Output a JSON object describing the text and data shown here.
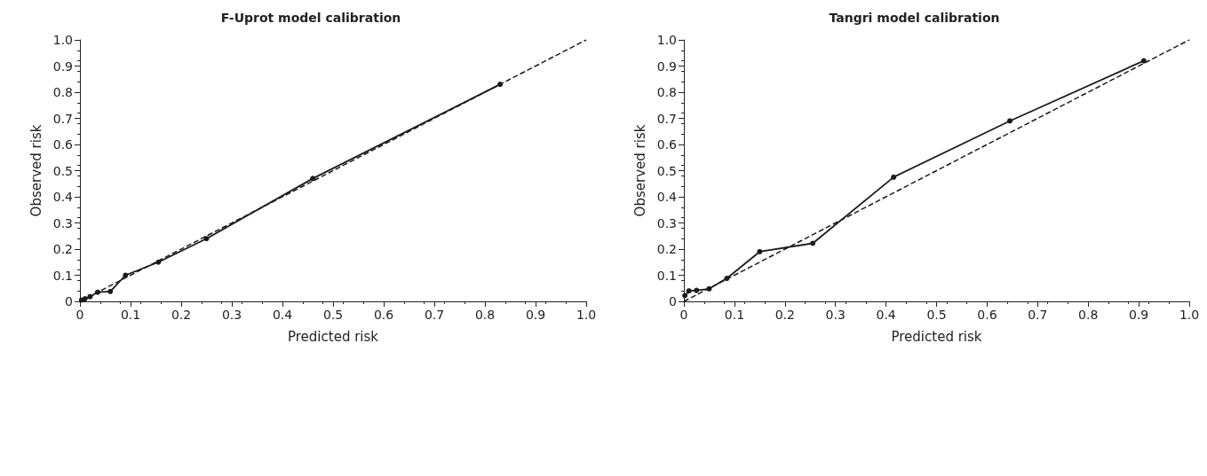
{
  "chart_data": [
    {
      "type": "line",
      "title": "F-Uprot model calibration",
      "xlabel": "Predicted risk",
      "ylabel": "Observed risk",
      "xlim": [
        0,
        1
      ],
      "ylim": [
        0,
        1
      ],
      "xticks": [
        0,
        0.1,
        0.2,
        0.3,
        0.4,
        0.5,
        0.6,
        0.7,
        0.8,
        0.9,
        {
          "value": 1,
          "label": "1.0"
        }
      ],
      "yticks": [
        0,
        0.1,
        0.2,
        0.3,
        0.4,
        0.5,
        0.6,
        0.7,
        0.8,
        0.9,
        {
          "value": 1,
          "label": "1.0"
        }
      ],
      "grid": false,
      "marker": "circle",
      "series": [
        {
          "color": "#1a1a1a",
          "line_style": "solid",
          "x": [
            0.003,
            0.01,
            0.02,
            0.035,
            0.06,
            0.09,
            0.155,
            0.25,
            0.46,
            0.83
          ],
          "values": [
            0.005,
            0.01,
            0.018,
            0.035,
            0.038,
            0.1,
            0.15,
            0.24,
            0.47,
            0.83
          ]
        },
        {
          "color": "#1a1a1a",
          "line_style": "dashed",
          "marker": "none",
          "x": [
            0,
            1
          ],
          "values": [
            0,
            1
          ]
        }
      ]
    },
    {
      "type": "line",
      "title": "Tangri model calibration",
      "xlabel": "Predicted risk",
      "ylabel": "Observed risk",
      "xlim": [
        0,
        1
      ],
      "ylim": [
        0,
        1
      ],
      "xticks": [
        0,
        0.1,
        0.2,
        0.3,
        0.4,
        0.5,
        0.6,
        0.7,
        0.8,
        0.9,
        {
          "value": 1,
          "label": "1.0"
        }
      ],
      "yticks": [
        0,
        0.1,
        0.2,
        0.3,
        0.4,
        0.5,
        0.6,
        0.7,
        0.8,
        0.9,
        {
          "value": 1,
          "label": "1.0"
        }
      ],
      "grid": false,
      "marker": "circle",
      "series": [
        {
          "color": "#1a1a1a",
          "line_style": "solid",
          "x": [
            0.002,
            0.01,
            0.025,
            0.05,
            0.085,
            0.15,
            0.255,
            0.415,
            0.645,
            0.91
          ],
          "values": [
            0.022,
            0.04,
            0.042,
            0.048,
            0.088,
            0.19,
            0.222,
            0.475,
            0.69,
            0.92
          ]
        },
        {
          "color": "#1a1a1a",
          "line_style": "dashed",
          "marker": "none",
          "x": [
            0,
            1
          ],
          "values": [
            0,
            1
          ]
        }
      ]
    }
  ]
}
